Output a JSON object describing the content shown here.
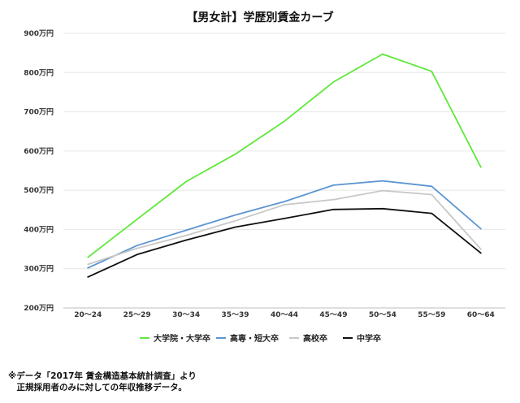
{
  "chart_data": {
    "type": "line",
    "title": "【男女計】学歴別賃金カーブ",
    "categories": [
      "20～24",
      "25～29",
      "30～34",
      "35～39",
      "40～44",
      "45～49",
      "50～54",
      "55～59",
      "60～64"
    ],
    "y_ticks": [
      "200万円",
      "300万円",
      "400万円",
      "500万円",
      "600万円",
      "700万円",
      "800万円",
      "900万円"
    ],
    "ylim": [
      200,
      900
    ],
    "grid": true,
    "legend_position": "bottom",
    "series": [
      {
        "name": "大学院・大学卒",
        "color": "#5ee83a",
        "values": [
          329,
          426,
          522,
          592,
          676,
          776,
          847,
          803,
          559
        ]
      },
      {
        "name": "高専・短大卒",
        "color": "#5b94d1",
        "values": [
          302,
          359,
          398,
          437,
          471,
          513,
          524,
          510,
          402
        ]
      },
      {
        "name": "高校卒",
        "color": "#c8c8c8",
        "values": [
          311,
          352,
          385,
          422,
          463,
          476,
          499,
          489,
          350
        ]
      },
      {
        "name": "中学卒",
        "color": "#111111",
        "values": [
          279,
          336,
          373,
          406,
          428,
          451,
          453,
          441,
          340
        ]
      }
    ]
  },
  "notes": [
    "※データ「2017年 賃金構造基本統計調査」より",
    "　正規採用者のみに対しての年収推移データ。"
  ]
}
